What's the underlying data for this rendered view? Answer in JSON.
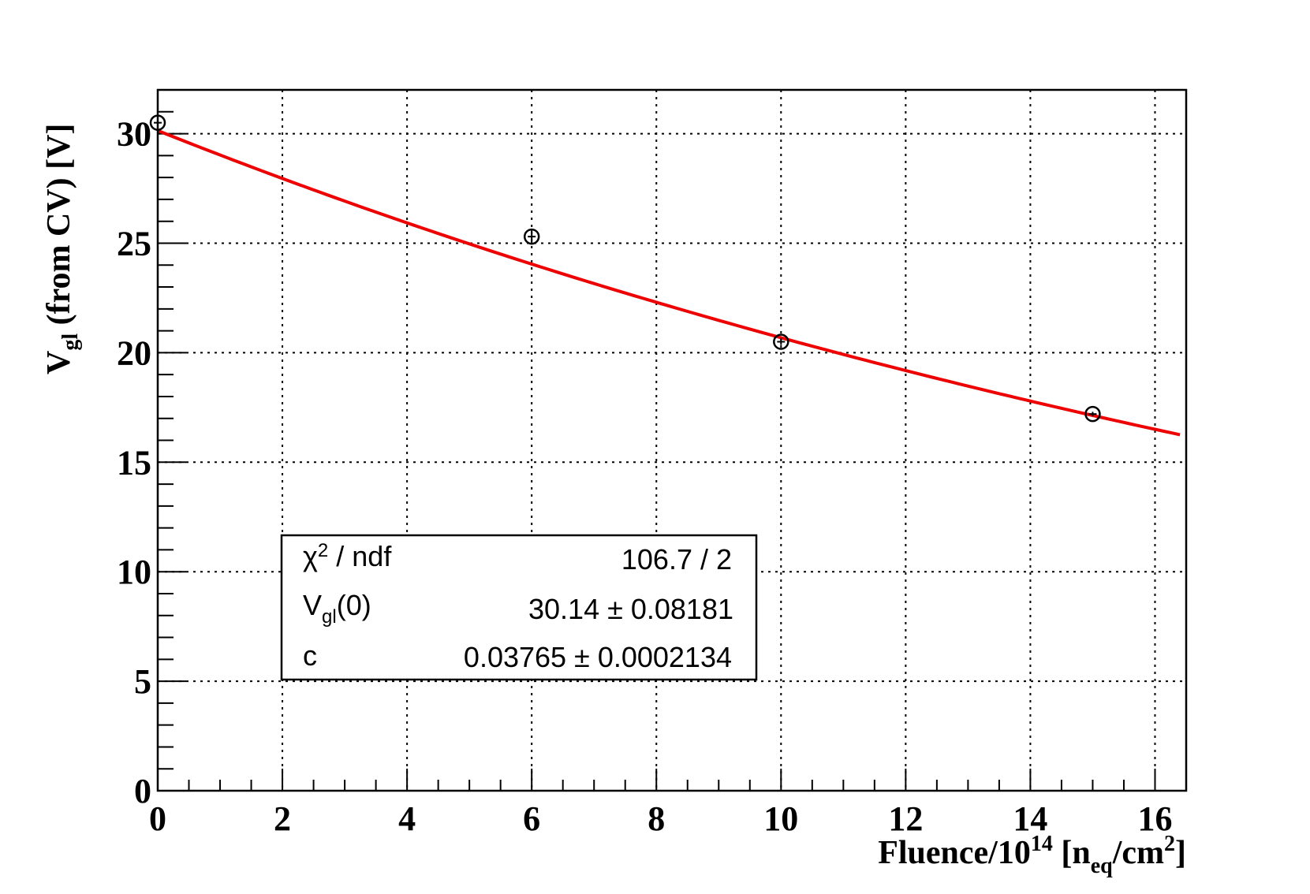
{
  "chart_data": {
    "type": "scatter",
    "title": "",
    "xlabel": {
      "main": "Fluence/10",
      "exp": "14",
      "open": " [n",
      "sub": "eq",
      "unit": "/cm",
      "unit_exp": "2",
      "close": "]"
    },
    "ylabel": {
      "main": "V",
      "sub": "gl",
      "rest": " (from CV) [V]"
    },
    "xlim": [
      0,
      16.5
    ],
    "ylim": [
      0,
      32
    ],
    "x_ticks": [
      0,
      2,
      4,
      6,
      8,
      10,
      12,
      14,
      16
    ],
    "y_ticks": [
      0,
      5,
      10,
      15,
      20,
      25,
      30
    ],
    "x_tick_labels": [
      "0",
      "2",
      "4",
      "6",
      "8",
      "10",
      "12",
      "14",
      "16"
    ],
    "y_tick_labels": [
      "0",
      "5",
      "10",
      "15",
      "20",
      "25",
      "30"
    ],
    "grid": true,
    "series": [
      {
        "type": "points",
        "marker": "open-circle",
        "color": "#000000",
        "x": [
          0,
          6,
          10,
          15
        ],
        "y": [
          30.5,
          25.3,
          20.5,
          17.2
        ],
        "y_err": [
          0.1,
          0.3,
          0.15,
          0.1
        ]
      },
      {
        "type": "fit-line",
        "color": "#ee0000",
        "model": "V0*exp(-c*x)",
        "params": {
          "V0": 30.14,
          "c": 0.03765
        },
        "x_range": [
          0,
          16.4
        ]
      }
    ],
    "stats_box": {
      "rows": [
        {
          "label": "χ",
          "label_sup": "2",
          "label_rest": " / ndf",
          "value": "106.7 / 2"
        },
        {
          "label": "V",
          "label_sub": "gl",
          "label_rest": "(0)",
          "value": "30.14 ± 0.08181"
        },
        {
          "label": "c",
          "value": "0.03765 ± 0.0002134"
        }
      ]
    }
  }
}
